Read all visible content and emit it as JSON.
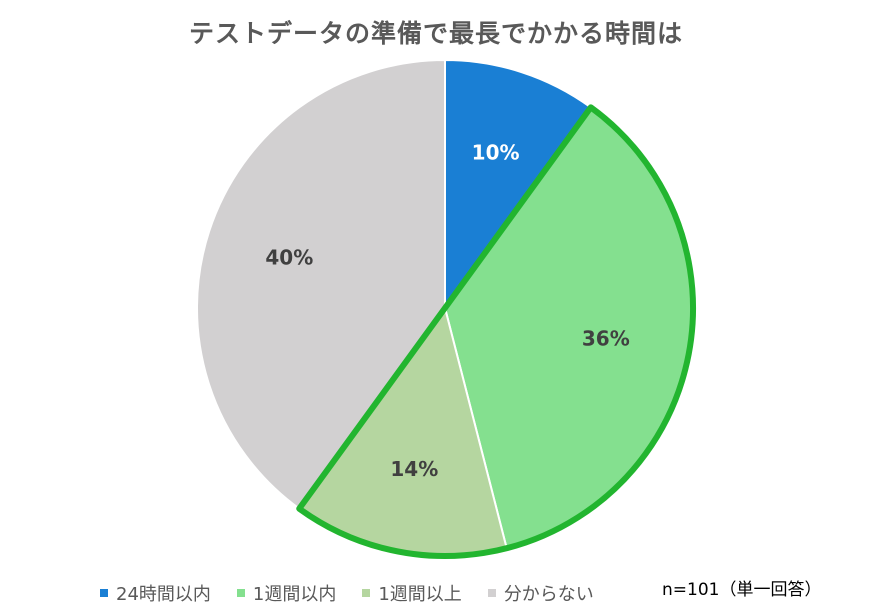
{
  "chart_data": {
    "type": "pie",
    "title": "テストデータの準備で最長でかかる時間は",
    "categories": [
      "24時間以内",
      "1週間以内",
      "1週間以上",
      "分からない"
    ],
    "values": [
      10,
      36,
      14,
      40
    ],
    "labels": [
      "10%",
      "36%",
      "14%",
      "40%"
    ],
    "colors": [
      "#1a7fd4",
      "#84e08f",
      "#b5d6a0",
      "#d2d0d1"
    ],
    "label_colors": [
      "#ffffff",
      "#404040",
      "#404040",
      "#404040"
    ],
    "highlight": {
      "categories": [
        "1週間以内",
        "1週間以上"
      ],
      "color": "#22b52f"
    },
    "legend_position": "bottom",
    "note": "n=101（単一回答）"
  }
}
